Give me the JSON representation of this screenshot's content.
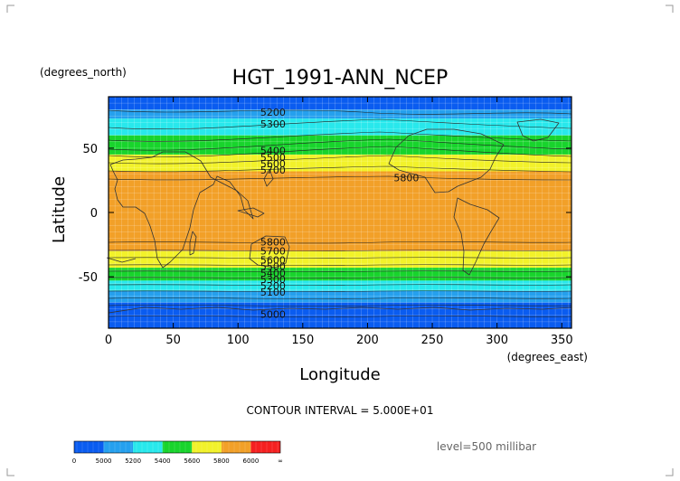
{
  "chart_data": {
    "type": "heatmap",
    "title": "HGT_1991-ANN_NCEP",
    "xlabel": "Longitude",
    "ylabel": "Latitude",
    "x_units": "(degrees_east)",
    "y_units": "(degrees_north)",
    "xlim": [
      0,
      357.5
    ],
    "ylim": [
      -90,
      90
    ],
    "x_ticks": [
      "0",
      "50",
      "100",
      "150",
      "200",
      "250",
      "300",
      "350"
    ],
    "y_ticks": [
      "50",
      "0",
      "-50"
    ],
    "x_tick_values": [
      0,
      50,
      100,
      150,
      200,
      250,
      300,
      350
    ],
    "y_tick_values": [
      50,
      0,
      -50
    ],
    "contour_interval_text": "CONTOUR INTERVAL = 5.000E+01",
    "level_text": "level=500 millibar",
    "contour_labels": [
      {
        "text": "5200",
        "lon": 127,
        "lat": 78
      },
      {
        "text": "5300",
        "lon": 127,
        "lat": 69
      },
      {
        "text": "5400",
        "lon": 127,
        "lat": 48
      },
      {
        "text": "5500",
        "lon": 127,
        "lat": 43
      },
      {
        "text": "5600",
        "lon": 127,
        "lat": 38
      },
      {
        "text": "5700",
        "lon": 127,
        "lat": 33
      },
      {
        "text": "5800",
        "lon": 230,
        "lat": 27
      },
      {
        "text": "5800",
        "lon": 127,
        "lat": -23
      },
      {
        "text": "5700",
        "lon": 127,
        "lat": -30
      },
      {
        "text": "5600",
        "lon": 127,
        "lat": -37
      },
      {
        "text": "5500",
        "lon": 127,
        "lat": -42
      },
      {
        "text": "5400",
        "lon": 127,
        "lat": -47
      },
      {
        "text": "5300",
        "lon": 127,
        "lat": -52
      },
      {
        "text": "5200",
        "lon": 127,
        "lat": -57
      },
      {
        "text": "5100",
        "lon": 127,
        "lat": -62
      },
      {
        "text": "5000",
        "lon": 127,
        "lat": -79
      }
    ],
    "bands": [
      {
        "from_lat": 90,
        "to_lat": 80,
        "value": 5150,
        "color": "#0a5cf0"
      },
      {
        "from_lat": 80,
        "to_lat": 73,
        "value": 5250,
        "color": "#25a0ee"
      },
      {
        "from_lat": 73,
        "to_lat": 60,
        "value": 5350,
        "color": "#28e8ec"
      },
      {
        "from_lat": 60,
        "to_lat": 45,
        "value": 5450,
        "color": "#18d42c"
      },
      {
        "from_lat": 45,
        "to_lat": 32,
        "value": 5650,
        "color": "#f2f22a"
      },
      {
        "from_lat": 32,
        "to_lat": -30,
        "value": 5850,
        "color": "#f2a028"
      },
      {
        "from_lat": -30,
        "to_lat": -43,
        "value": 5650,
        "color": "#f2f22a"
      },
      {
        "from_lat": -43,
        "to_lat": -53,
        "value": 5450,
        "color": "#18d42c"
      },
      {
        "from_lat": -53,
        "to_lat": -61,
        "value": 5350,
        "color": "#28e8ec"
      },
      {
        "from_lat": -61,
        "to_lat": -70,
        "value": 5250,
        "color": "#25a0ee"
      },
      {
        "from_lat": -70,
        "to_lat": -90,
        "value": 5050,
        "color": "#0a5cf0"
      }
    ],
    "colorbar": {
      "labels": [
        "0",
        "5000",
        "5200",
        "5400",
        "5600",
        "5800",
        "6000",
        "∞"
      ],
      "colors": [
        "#0a5cf0",
        "#25a0ee",
        "#28e8ec",
        "#18d42c",
        "#f2f22a",
        "#f2a028",
        "#f52020"
      ]
    },
    "grid": true
  }
}
